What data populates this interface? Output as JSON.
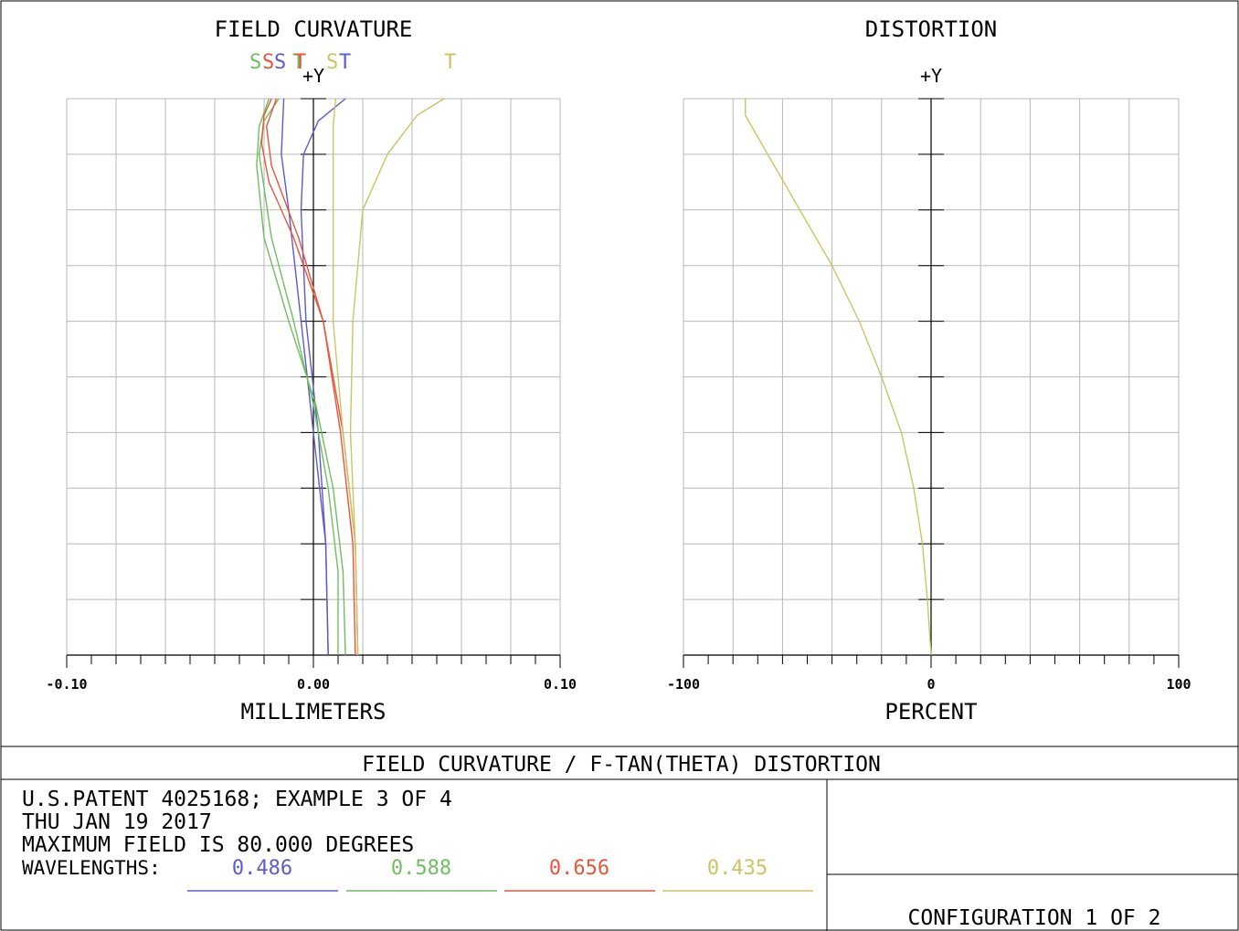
{
  "footer": {
    "main_title": "FIELD CURVATURE / F-TAN(THETA) DISTORTION",
    "lines": [
      "U.S.PATENT 4025168; EXAMPLE 3 OF 4",
      "THU JAN 19 2017",
      "MAXIMUM FIELD IS 80.000 DEGREES"
    ],
    "wavelengths_label": "WAVELENGTHS:",
    "wavelengths": [
      {
        "value": "0.486",
        "color": "#5b5bd0"
      },
      {
        "value": "0.588",
        "color": "#6fbf5f"
      },
      {
        "value": "0.656",
        "color": "#e8553a"
      },
      {
        "value": "0.435",
        "color": "#c9c562"
      }
    ],
    "configuration": "CONFIGURATION 1 OF 2"
  },
  "chart_data": [
    {
      "type": "line",
      "title": "FIELD CURVATURE",
      "xlabel": "MILLIMETERS",
      "ylabel": "+Y",
      "xlim": [
        -0.1,
        0.1
      ],
      "ylim": [
        0,
        1
      ],
      "x_tick_labels": [
        "-0.10",
        "0.00",
        "0.10"
      ],
      "grid": true,
      "legend_labels": [
        {
          "text": "S",
          "color": "#6fbf5f"
        },
        {
          "text": "S",
          "color": "#e8553a"
        },
        {
          "text": "S",
          "color": "#5b5bd0"
        },
        {
          "text": "T",
          "color": "#6fbf5f"
        },
        {
          "text": "T",
          "color": "#e8553a"
        },
        {
          "text": "S",
          "color": "#c9c562"
        },
        {
          "text": "T",
          "color": "#5b5bd0"
        },
        {
          "text": "T",
          "color": "#c9c562"
        }
      ],
      "series": [
        {
          "color": "#5b5bd0",
          "points": [
            [
              0.006,
              0
            ],
            [
              0.005,
              0.2
            ],
            [
              0.002,
              0.4
            ],
            [
              -0.003,
              0.6
            ],
            [
              -0.005,
              0.8
            ],
            [
              -0.004,
              0.9
            ],
            [
              0.002,
              0.96
            ],
            [
              0.013,
              1.0
            ]
          ]
        },
        {
          "color": "#5b5bd0",
          "points": [
            [
              0.006,
              0
            ],
            [
              0.005,
              0.2
            ],
            [
              0.0,
              0.4
            ],
            [
              -0.005,
              0.6
            ],
            [
              -0.01,
              0.8
            ],
            [
              -0.013,
              0.9
            ],
            [
              -0.012,
              1.0
            ]
          ]
        },
        {
          "color": "#6fbf5f",
          "points": [
            [
              0.01,
              0
            ],
            [
              0.01,
              0.15
            ],
            [
              0.006,
              0.3
            ],
            [
              0.0,
              0.45
            ],
            [
              -0.008,
              0.6
            ],
            [
              -0.017,
              0.75
            ],
            [
              -0.022,
              0.9
            ],
            [
              -0.02,
              0.96
            ],
            [
              -0.014,
              1.0
            ]
          ]
        },
        {
          "color": "#6fbf5f",
          "points": [
            [
              0.013,
              0
            ],
            [
              0.012,
              0.15
            ],
            [
              0.008,
              0.3
            ],
            [
              0.001,
              0.45
            ],
            [
              -0.01,
              0.6
            ],
            [
              -0.02,
              0.75
            ],
            [
              -0.023,
              0.88
            ],
            [
              -0.022,
              0.95
            ],
            [
              -0.018,
              1.0
            ]
          ]
        },
        {
          "color": "#e8553a",
          "points": [
            [
              0.017,
              0
            ],
            [
              0.016,
              0.2
            ],
            [
              0.011,
              0.4
            ],
            [
              0.004,
              0.6
            ],
            [
              -0.006,
              0.75
            ],
            [
              -0.017,
              0.88
            ],
            [
              -0.019,
              0.95
            ],
            [
              -0.015,
              1.0
            ]
          ]
        },
        {
          "color": "#e8553a",
          "points": [
            [
              0.018,
              0
            ],
            [
              0.017,
              0.2
            ],
            [
              0.012,
              0.4
            ],
            [
              0.004,
              0.6
            ],
            [
              -0.008,
              0.75
            ],
            [
              -0.018,
              0.85
            ],
            [
              -0.021,
              0.92
            ],
            [
              -0.02,
              0.97
            ],
            [
              -0.017,
              1.0
            ]
          ]
        },
        {
          "color": "#c9c562",
          "points": [
            [
              0.018,
              0
            ],
            [
              0.017,
              0.2
            ],
            [
              0.012,
              0.4
            ],
            [
              0.008,
              0.6
            ],
            [
              0.008,
              0.8
            ],
            [
              0.008,
              0.95
            ],
            [
              0.009,
              1.0
            ]
          ]
        },
        {
          "color": "#c9c562",
          "points": [
            [
              0.018,
              0
            ],
            [
              0.017,
              0.2
            ],
            [
              0.015,
              0.4
            ],
            [
              0.016,
              0.6
            ],
            [
              0.02,
              0.8
            ],
            [
              0.03,
              0.9
            ],
            [
              0.042,
              0.97
            ],
            [
              0.053,
              1.0
            ]
          ]
        }
      ]
    },
    {
      "type": "line",
      "title": "DISTORTION",
      "xlabel": "PERCENT",
      "ylabel": "+Y",
      "xlim": [
        -100,
        100
      ],
      "ylim": [
        0,
        1
      ],
      "x_tick_labels": [
        "-100",
        "0",
        "100"
      ],
      "grid": true,
      "series": [
        {
          "color": "#c9c562",
          "points": [
            [
              0,
              0
            ],
            [
              -1.5,
              0.1
            ],
            [
              -3.5,
              0.2
            ],
            [
              -7,
              0.3
            ],
            [
              -12,
              0.4
            ],
            [
              -20,
              0.5
            ],
            [
              -29,
              0.6
            ],
            [
              -40,
              0.7
            ],
            [
              -53,
              0.8
            ],
            [
              -66,
              0.9
            ],
            [
              -75,
              0.97
            ],
            [
              -75,
              1.0
            ]
          ]
        }
      ]
    }
  ]
}
